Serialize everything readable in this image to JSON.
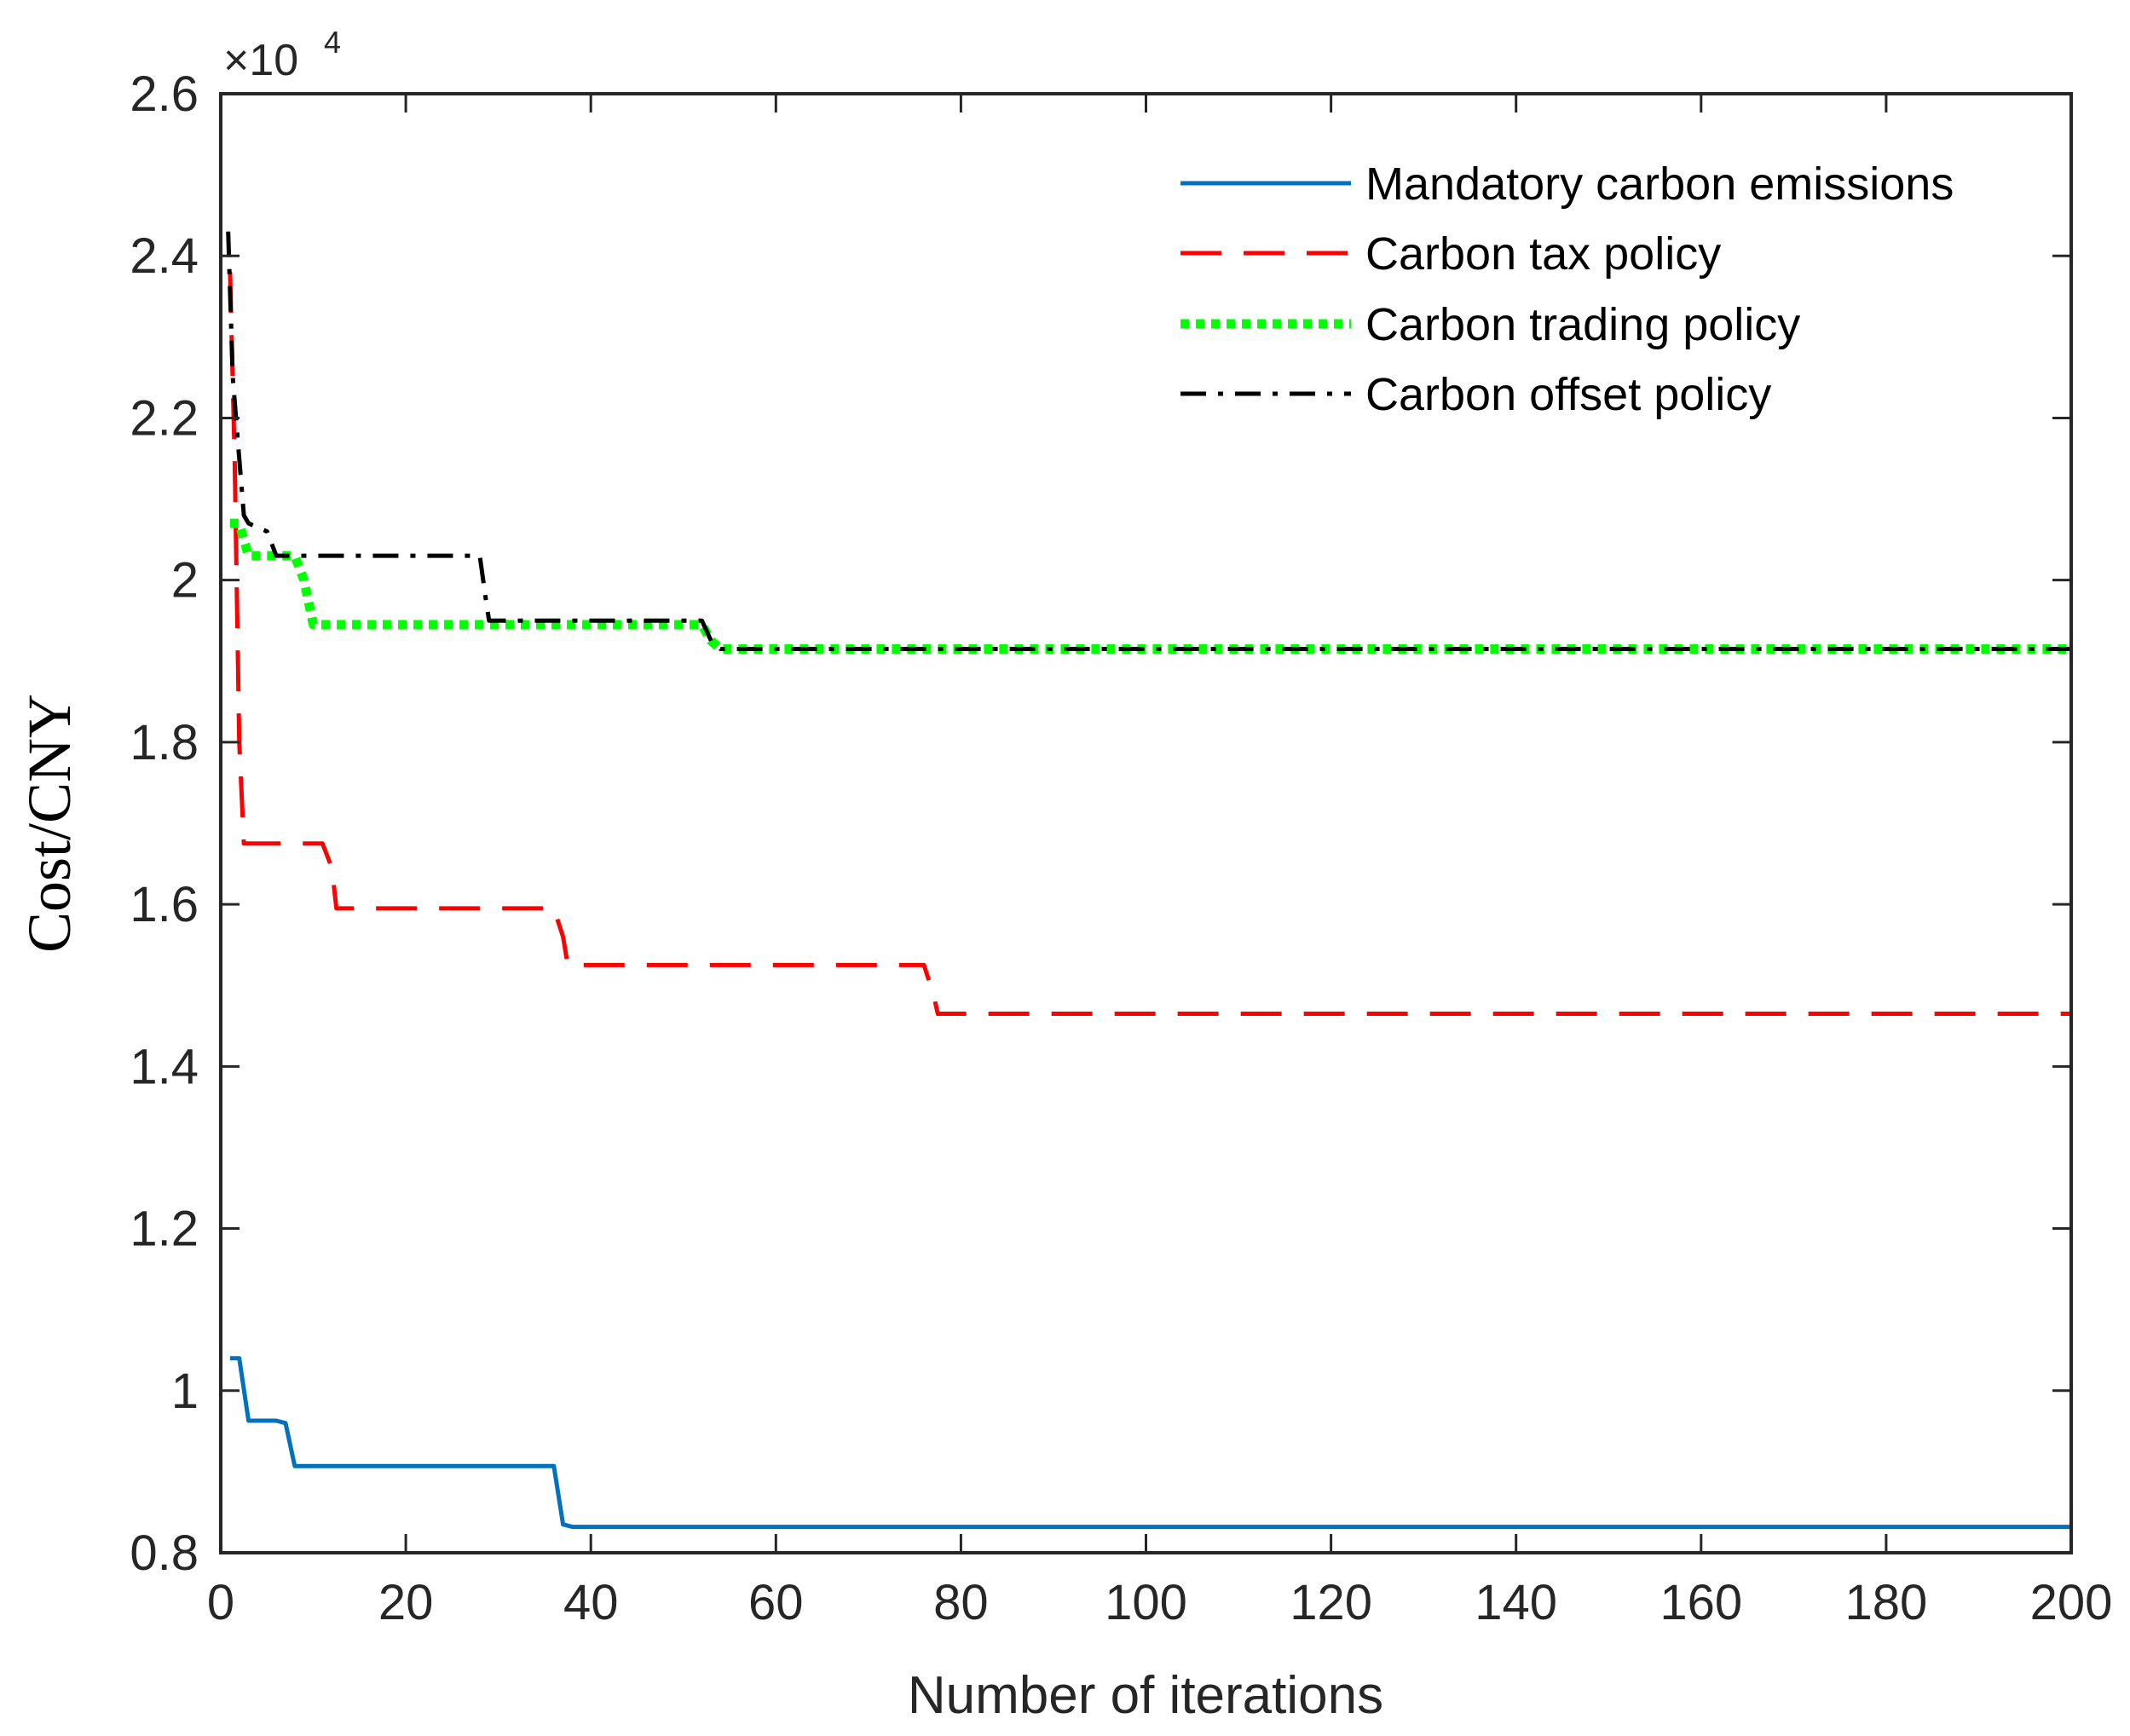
{
  "chart_data": {
    "type": "line",
    "xlabel": "Number of iterations",
    "ylabel": "Cost/CNY",
    "y_multiplier_label": "×10",
    "y_multiplier_exponent": "4",
    "xlim": [
      0,
      200
    ],
    "ylim": [
      0.8,
      2.6
    ],
    "xticks": [
      0,
      20,
      40,
      60,
      80,
      100,
      120,
      140,
      160,
      180,
      200
    ],
    "xtick_labels": [
      "0",
      "20",
      "40",
      "60",
      "80",
      "100",
      "120",
      "140",
      "160",
      "180",
      "200"
    ],
    "yticks": [
      0.8,
      1.0,
      1.2,
      1.4,
      1.6,
      1.8,
      2.0,
      2.2,
      2.4,
      2.6
    ],
    "ytick_labels": [
      "0.8",
      "1",
      "1.2",
      "1.4",
      "1.6",
      "1.8",
      "2",
      "2.2",
      "2.4",
      "2.6"
    ],
    "grid": false,
    "legend_position": "top-right",
    "series": [
      {
        "name": "Mandatory carbon emissions",
        "color": "#0072BD",
        "style": "solid",
        "x": [
          1,
          2,
          3,
          6,
          7,
          8,
          36,
          37,
          38,
          200
        ],
        "y": [
          1.04,
          1.04,
          0.963,
          0.963,
          0.96,
          0.907,
          0.907,
          0.835,
          0.832,
          0.832
        ]
      },
      {
        "name": "Carbon tax policy",
        "color": "#FF0000",
        "style": "dashed",
        "x": [
          1,
          1.5,
          2,
          2.5,
          11,
          12,
          12.5,
          36,
          37,
          37.5,
          76,
          77,
          77.5,
          200
        ],
        "y": [
          2.38,
          2.15,
          1.8,
          1.675,
          1.675,
          1.645,
          1.595,
          1.595,
          1.56,
          1.525,
          1.525,
          1.49,
          1.465,
          1.465
        ]
      },
      {
        "name": "Carbon trading policy",
        "color": "#00FF00",
        "style": "dotted",
        "x": [
          1,
          2,
          3,
          8,
          9,
          10,
          52,
          53,
          54,
          200
        ],
        "y": [
          2.07,
          2.07,
          2.03,
          2.03,
          2.0,
          1.945,
          1.945,
          1.925,
          1.915,
          1.915
        ]
      },
      {
        "name": "Carbon offset policy",
        "color": "#000000",
        "style": "dashdot",
        "x": [
          0.8,
          1.3,
          2,
          2.5,
          3,
          5,
          6,
          28,
          28.6,
          29,
          52,
          53,
          54,
          200
        ],
        "y": [
          2.43,
          2.25,
          2.15,
          2.08,
          2.07,
          2.06,
          2.03,
          2.03,
          1.98,
          1.95,
          1.95,
          1.925,
          1.915,
          1.915
        ]
      }
    ]
  }
}
